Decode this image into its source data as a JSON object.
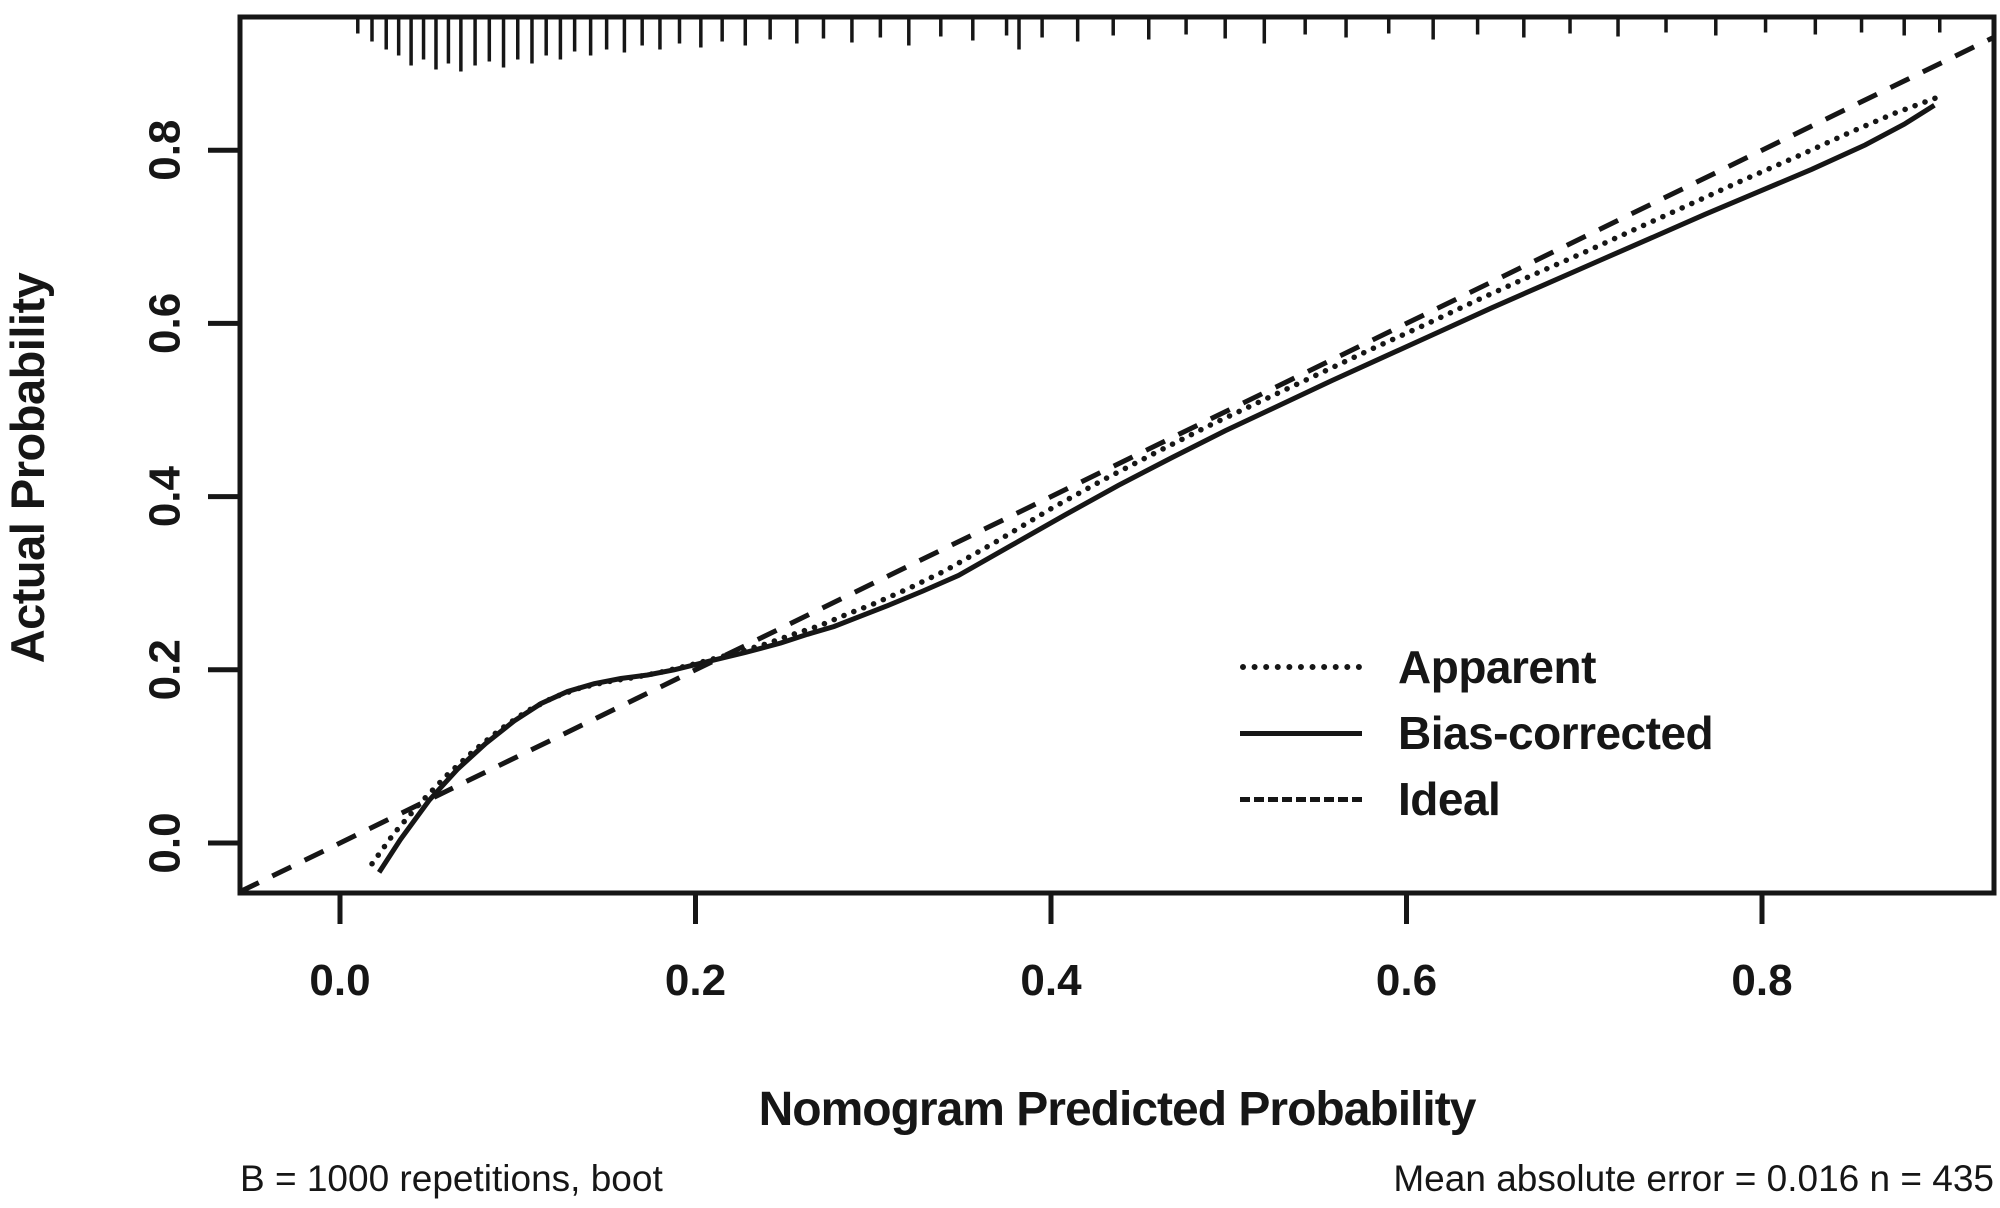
{
  "figure": {
    "background": "#ffffff",
    "ink_color": "#161616"
  },
  "y_axis": {
    "title": "Actual Probability",
    "tick_labels": [
      "0.0",
      "0.2",
      "0.4",
      "0.6",
      "0.8"
    ],
    "tick_values": [
      0.0,
      0.2,
      0.4,
      0.6,
      0.8
    ]
  },
  "x_axis": {
    "title": "Nomogram Predicted Probability",
    "tick_labels": [
      "0.0",
      "0.2",
      "0.4",
      "0.6",
      "0.8"
    ],
    "tick_values": [
      0.0,
      0.2,
      0.4,
      0.6,
      0.8
    ]
  },
  "legend": {
    "items": [
      {
        "label": "Apparent",
        "line_style": "dotted"
      },
      {
        "label": "Bias-corrected",
        "line_style": "solid"
      },
      {
        "label": "Ideal",
        "line_style": "dashed"
      }
    ]
  },
  "footnotes": {
    "left": "B = 1000 repetitions, boot",
    "right": "Mean absolute error = 0.016 n = 435"
  },
  "stats": {
    "bootstrap_repetitions": 1000,
    "resampling_method": "boot",
    "mean_absolute_error": 0.016,
    "n": 435
  },
  "chart_data": {
    "type": "line",
    "title": "",
    "xlabel": "Nomogram Predicted Probability",
    "ylabel": "Actual Probability",
    "xlim": [
      -0.056,
      0.9305
    ],
    "ylim": [
      -0.058,
      0.954
    ],
    "grid": false,
    "legend_position": "right-center",
    "series": [
      {
        "name": "Apparent",
        "style": "dotted",
        "points": [
          [
            0.018,
            -0.024
          ],
          [
            0.03,
            0.01
          ],
          [
            0.045,
            0.046
          ],
          [
            0.06,
            0.078
          ],
          [
            0.075,
            0.106
          ],
          [
            0.09,
            0.131
          ],
          [
            0.105,
            0.152
          ],
          [
            0.12,
            0.168
          ],
          [
            0.135,
            0.179
          ],
          [
            0.15,
            0.186
          ],
          [
            0.165,
            0.191
          ],
          [
            0.18,
            0.197
          ],
          [
            0.2,
            0.207
          ],
          [
            0.22,
            0.218
          ],
          [
            0.24,
            0.23
          ],
          [
            0.255,
            0.241
          ],
          [
            0.27,
            0.251
          ],
          [
            0.285,
            0.264
          ],
          [
            0.3,
            0.276
          ],
          [
            0.32,
            0.294
          ],
          [
            0.34,
            0.314
          ],
          [
            0.37,
            0.349
          ],
          [
            0.4,
            0.386
          ],
          [
            0.43,
            0.42
          ],
          [
            0.46,
            0.452
          ],
          [
            0.49,
            0.483
          ],
          [
            0.52,
            0.512
          ],
          [
            0.55,
            0.541
          ],
          [
            0.58,
            0.57
          ],
          [
            0.61,
            0.598
          ],
          [
            0.64,
            0.627
          ],
          [
            0.67,
            0.655
          ],
          [
            0.7,
            0.682
          ],
          [
            0.73,
            0.71
          ],
          [
            0.76,
            0.738
          ],
          [
            0.79,
            0.766
          ],
          [
            0.82,
            0.793
          ],
          [
            0.85,
            0.821
          ],
          [
            0.875,
            0.843
          ],
          [
            0.9,
            0.862
          ]
        ]
      },
      {
        "name": "Bias-corrected",
        "style": "solid",
        "points": [
          [
            0.022,
            -0.034
          ],
          [
            0.034,
            0.004
          ],
          [
            0.05,
            0.049
          ],
          [
            0.066,
            0.085
          ],
          [
            0.082,
            0.115
          ],
          [
            0.098,
            0.141
          ],
          [
            0.113,
            0.161
          ],
          [
            0.128,
            0.175
          ],
          [
            0.143,
            0.184
          ],
          [
            0.158,
            0.19
          ],
          [
            0.173,
            0.194
          ],
          [
            0.188,
            0.2
          ],
          [
            0.208,
            0.21
          ],
          [
            0.228,
            0.22
          ],
          [
            0.248,
            0.231
          ],
          [
            0.263,
            0.241
          ],
          [
            0.278,
            0.25
          ],
          [
            0.293,
            0.262
          ],
          [
            0.308,
            0.274
          ],
          [
            0.328,
            0.291
          ],
          [
            0.348,
            0.309
          ],
          [
            0.378,
            0.344
          ],
          [
            0.408,
            0.379
          ],
          [
            0.438,
            0.413
          ],
          [
            0.468,
            0.445
          ],
          [
            0.498,
            0.476
          ],
          [
            0.528,
            0.505
          ],
          [
            0.558,
            0.534
          ],
          [
            0.588,
            0.562
          ],
          [
            0.618,
            0.59
          ],
          [
            0.648,
            0.618
          ],
          [
            0.678,
            0.645
          ],
          [
            0.708,
            0.672
          ],
          [
            0.738,
            0.699
          ],
          [
            0.768,
            0.726
          ],
          [
            0.798,
            0.752
          ],
          [
            0.828,
            0.778
          ],
          [
            0.858,
            0.806
          ],
          [
            0.88,
            0.83
          ],
          [
            0.897,
            0.852
          ]
        ]
      },
      {
        "name": "Ideal",
        "style": "dashed",
        "points": [
          [
            -0.0563,
            -0.0563
          ],
          [
            0.9305,
            0.9305
          ]
        ]
      }
    ],
    "rug_marks": [
      [
        0.01,
        14
      ],
      [
        0.018,
        22
      ],
      [
        0.026,
        30
      ],
      [
        0.033,
        36
      ],
      [
        0.04,
        46
      ],
      [
        0.047,
        40
      ],
      [
        0.054,
        50
      ],
      [
        0.061,
        44
      ],
      [
        0.068,
        52
      ],
      [
        0.076,
        46
      ],
      [
        0.084,
        42
      ],
      [
        0.092,
        48
      ],
      [
        0.1,
        40
      ],
      [
        0.108,
        44
      ],
      [
        0.116,
        36
      ],
      [
        0.124,
        40
      ],
      [
        0.132,
        32
      ],
      [
        0.141,
        36
      ],
      [
        0.15,
        30
      ],
      [
        0.16,
        33
      ],
      [
        0.17,
        26
      ],
      [
        0.18,
        30
      ],
      [
        0.191,
        24
      ],
      [
        0.203,
        28
      ],
      [
        0.215,
        22
      ],
      [
        0.228,
        26
      ],
      [
        0.242,
        20
      ],
      [
        0.257,
        24
      ],
      [
        0.272,
        19
      ],
      [
        0.288,
        23
      ],
      [
        0.304,
        18
      ],
      [
        0.32,
        26
      ],
      [
        0.338,
        17
      ],
      [
        0.356,
        21
      ],
      [
        0.375,
        16
      ],
      [
        0.382,
        30
      ],
      [
        0.395,
        18
      ],
      [
        0.415,
        22
      ],
      [
        0.435,
        16
      ],
      [
        0.455,
        20
      ],
      [
        0.476,
        15
      ],
      [
        0.498,
        19
      ],
      [
        0.52,
        24
      ],
      [
        0.543,
        15
      ],
      [
        0.566,
        18
      ],
      [
        0.59,
        14
      ],
      [
        0.615,
        20
      ],
      [
        0.64,
        15
      ],
      [
        0.666,
        18
      ],
      [
        0.692,
        14
      ],
      [
        0.719,
        17
      ],
      [
        0.746,
        13
      ],
      [
        0.774,
        16
      ],
      [
        0.802,
        13
      ],
      [
        0.83,
        15
      ],
      [
        0.856,
        13
      ],
      [
        0.88,
        16
      ],
      [
        0.9,
        13
      ]
    ]
  }
}
